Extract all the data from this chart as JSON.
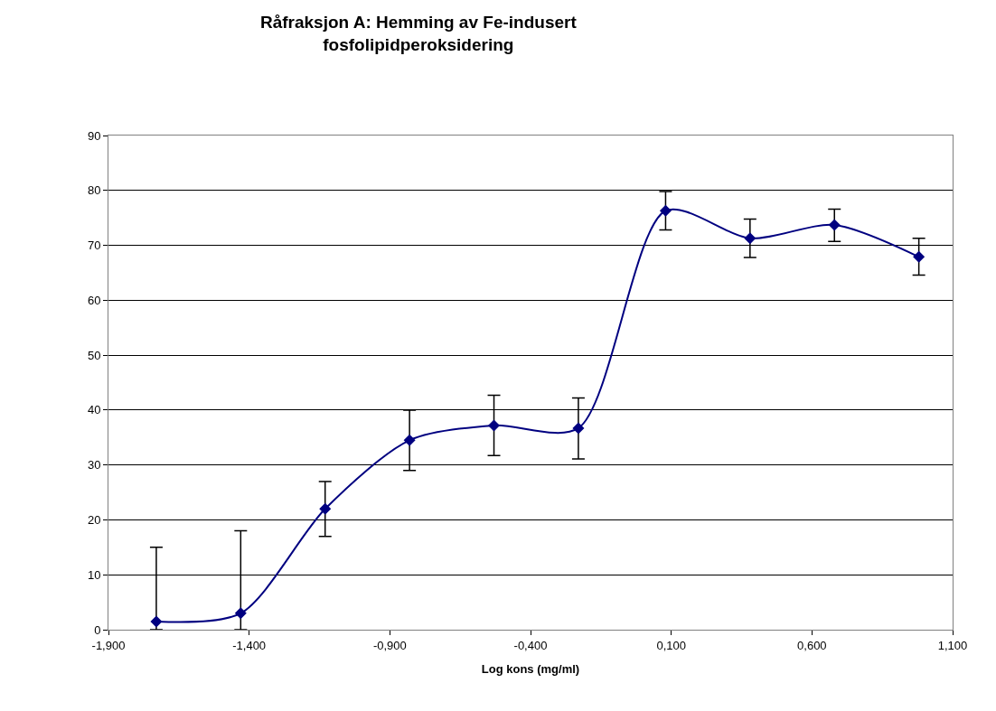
{
  "chart_data": {
    "type": "line",
    "title": "Råfraksjon A: Hemming av Fe-indusert\nfosfolipidperoksidering",
    "xlabel": "Log kons (mg/ml)",
    "x": [
      -1.73,
      -1.43,
      -1.13,
      -0.83,
      -0.53,
      -0.23,
      0.08,
      0.38,
      0.68,
      0.98
    ],
    "series": [
      {
        "color": "#000080",
        "values": [
          1.5,
          3,
          22,
          34.5,
          37.2,
          36.7,
          76.3,
          71.3,
          73.7,
          67.9
        ],
        "errors": [
          [
            0,
            15
          ],
          [
            0,
            18
          ],
          [
            17,
            27
          ],
          [
            29,
            40
          ],
          [
            31.7,
            42.7
          ],
          [
            31.1,
            42.2
          ],
          [
            72.8,
            79.8
          ],
          [
            67.8,
            74.8
          ],
          [
            70.7,
            76.6
          ],
          [
            64.6,
            71.3
          ]
        ]
      }
    ],
    "xlim": [
      -1.9,
      1.1
    ],
    "xticks": [
      {
        "value": -1.9,
        "label": "-1,900"
      },
      {
        "value": -1.4,
        "label": "-1,400"
      },
      {
        "value": -0.9,
        "label": "-0,900"
      },
      {
        "value": -0.4,
        "label": "-0,400"
      },
      {
        "value": 0.1,
        "label": "0,100"
      },
      {
        "value": 0.6,
        "label": "0,600"
      },
      {
        "value": 1.1,
        "label": "1,100"
      }
    ],
    "ylim": [
      0,
      90
    ],
    "yticks": [
      0,
      10,
      20,
      30,
      40,
      50,
      60,
      70,
      80,
      90
    ],
    "grid": "y",
    "marker": "diamond",
    "line_style": "solid"
  }
}
